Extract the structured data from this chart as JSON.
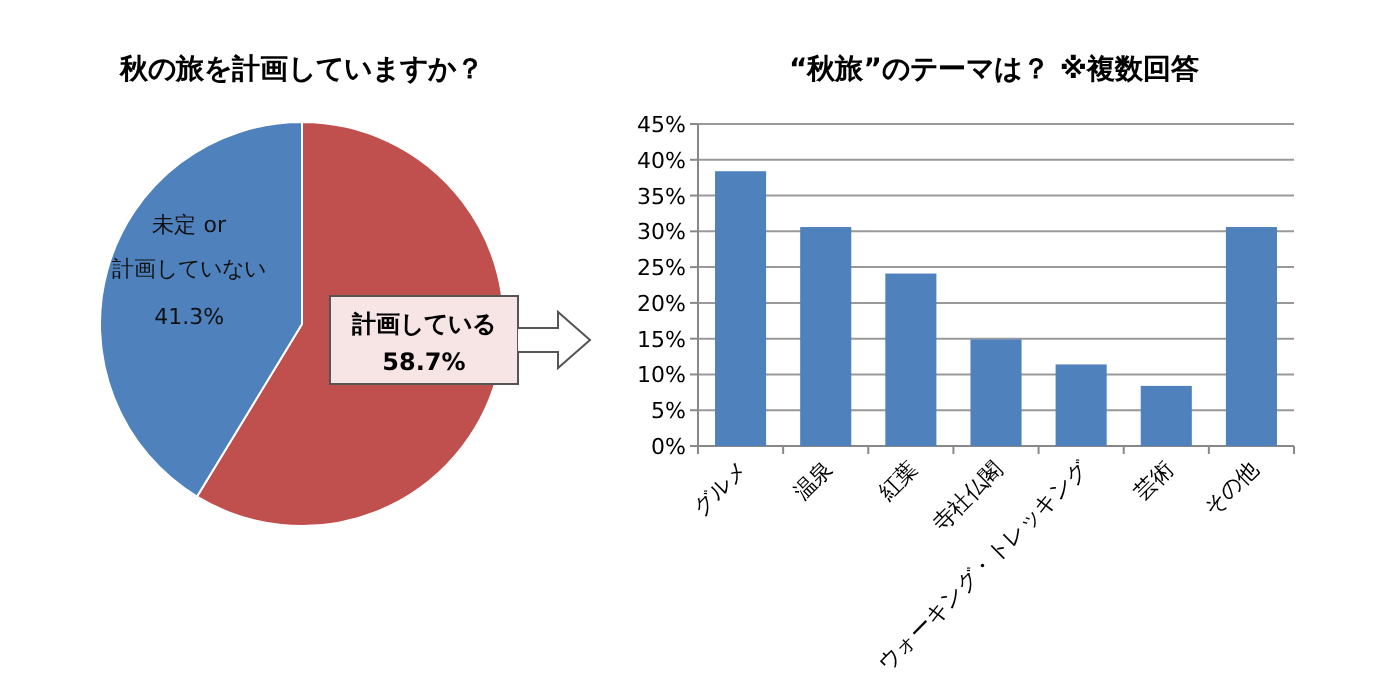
{
  "chart_data": [
    {
      "type": "pie",
      "title": "秋の旅を計画していますか？",
      "categories": [
        "計画している",
        "未定 or 計画していない"
      ],
      "values": [
        58.7,
        41.3
      ],
      "colors": [
        "#c0504d",
        "#4f81bd"
      ],
      "value_labels": [
        "58.7%",
        "41.3%"
      ]
    },
    {
      "type": "bar",
      "title": "“秋旅”のテーマは？ ※複数回答",
      "categories": [
        "グルメ",
        "温泉",
        "紅葉",
        "寺社仏閣",
        "ウォーキング・トレッキング",
        "芸術",
        "その他"
      ],
      "series": [
        {
          "color": "#4f81bd",
          "values": [
            38.4,
            30.6,
            24.1,
            14.9,
            11.4,
            8.4,
            30.6
          ]
        }
      ],
      "ylim": [
        0,
        45
      ],
      "yticks": [
        {
          "value": 0,
          "label": "0%"
        },
        {
          "value": 5,
          "label": "5%"
        },
        {
          "value": 10,
          "label": "10%"
        },
        {
          "value": 15,
          "label": "15%"
        },
        {
          "value": 20,
          "label": "20%"
        },
        {
          "value": 25,
          "label": "25%"
        },
        {
          "value": 30,
          "label": "30%"
        },
        {
          "value": 35,
          "label": "35%"
        },
        {
          "value": 40,
          "label": "40%"
        },
        {
          "value": 45,
          "label": "45%"
        }
      ],
      "grid": "y"
    }
  ]
}
